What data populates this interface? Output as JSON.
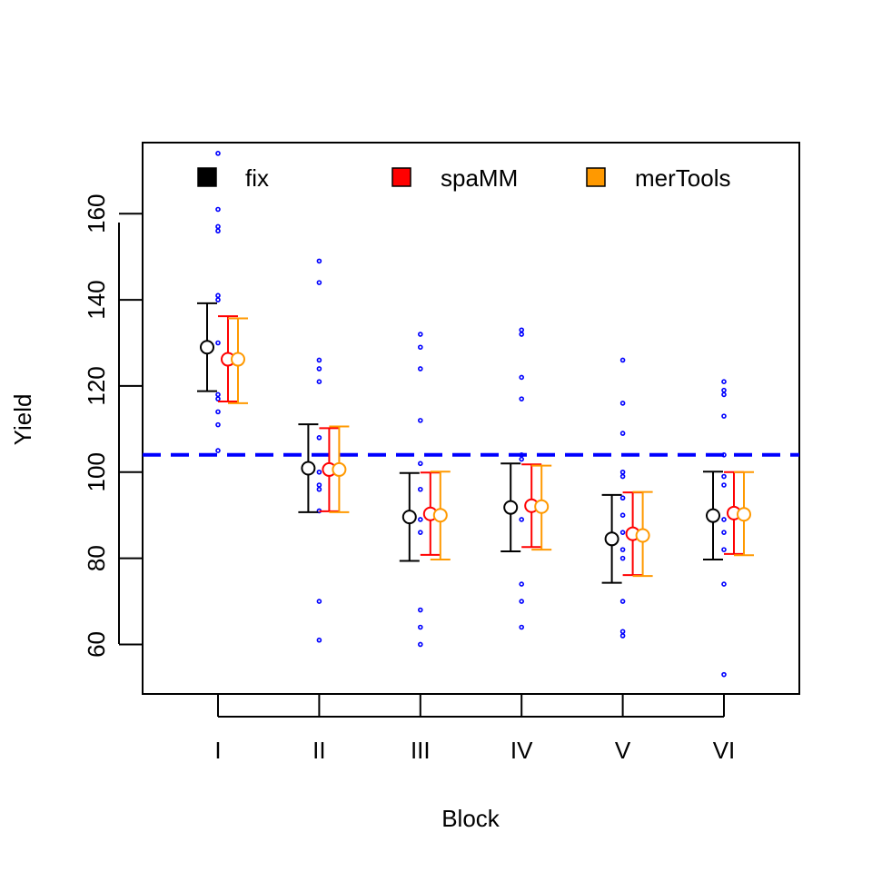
{
  "chart_data": {
    "type": "scatter",
    "title": "",
    "xlabel": "Block",
    "ylabel": "Yield",
    "categories": [
      "I",
      "II",
      "III",
      "IV",
      "V",
      "VI"
    ],
    "ylim": [
      48.5,
      176.5
    ],
    "yticks": [
      60,
      80,
      100,
      120,
      140,
      160
    ],
    "grid": false,
    "legend_position": "top",
    "reference_line": {
      "y": 104,
      "color": "#0000ff",
      "style": "dashed"
    },
    "raw_points": {
      "color": "#0000ff",
      "values": [
        [
          174,
          161,
          157,
          156,
          141,
          140,
          130,
          118,
          117,
          114,
          111,
          105
        ],
        [
          149,
          144,
          126,
          124,
          121,
          108,
          100,
          97,
          96,
          91,
          70,
          61
        ],
        [
          132,
          129,
          124,
          112,
          102,
          96,
          89,
          86,
          68,
          64,
          60
        ],
        [
          133,
          132,
          122,
          117,
          104,
          103,
          89,
          74,
          70,
          64
        ],
        [
          126,
          116,
          109,
          100,
          99,
          94,
          90,
          86,
          82,
          80,
          70,
          63,
          62
        ],
        [
          121,
          119,
          118,
          113,
          104,
          99,
          97,
          89,
          86,
          82,
          74,
          53
        ]
      ]
    },
    "series": [
      {
        "name": "fix",
        "color": "#000000",
        "values": [
          129,
          100.9,
          89.6,
          91.8,
          84.5,
          89.9
        ],
        "lower": [
          118.8,
          90.7,
          79.4,
          81.6,
          74.3,
          79.7
        ],
        "upper": [
          139.2,
          111.1,
          99.8,
          102.0,
          94.7,
          100.1
        ]
      },
      {
        "name": "spaMM",
        "color": "#ff0000",
        "values": [
          126.2,
          100.6,
          90.3,
          92.2,
          85.7,
          90.5
        ],
        "lower": [
          116.4,
          90.9,
          80.8,
          82.6,
          76.1,
          81.0
        ],
        "upper": [
          136.2,
          110.2,
          99.9,
          101.8,
          95.3,
          100.0
        ]
      },
      {
        "name": "merTools",
        "color": "#ff9900",
        "values": [
          126.2,
          100.6,
          90.0,
          92.0,
          85.3,
          90.2
        ],
        "lower": [
          116.0,
          90.7,
          79.7,
          82.0,
          75.9,
          80.7
        ],
        "upper": [
          135.7,
          110.6,
          100.1,
          101.5,
          95.4,
          100.0
        ]
      }
    ]
  }
}
